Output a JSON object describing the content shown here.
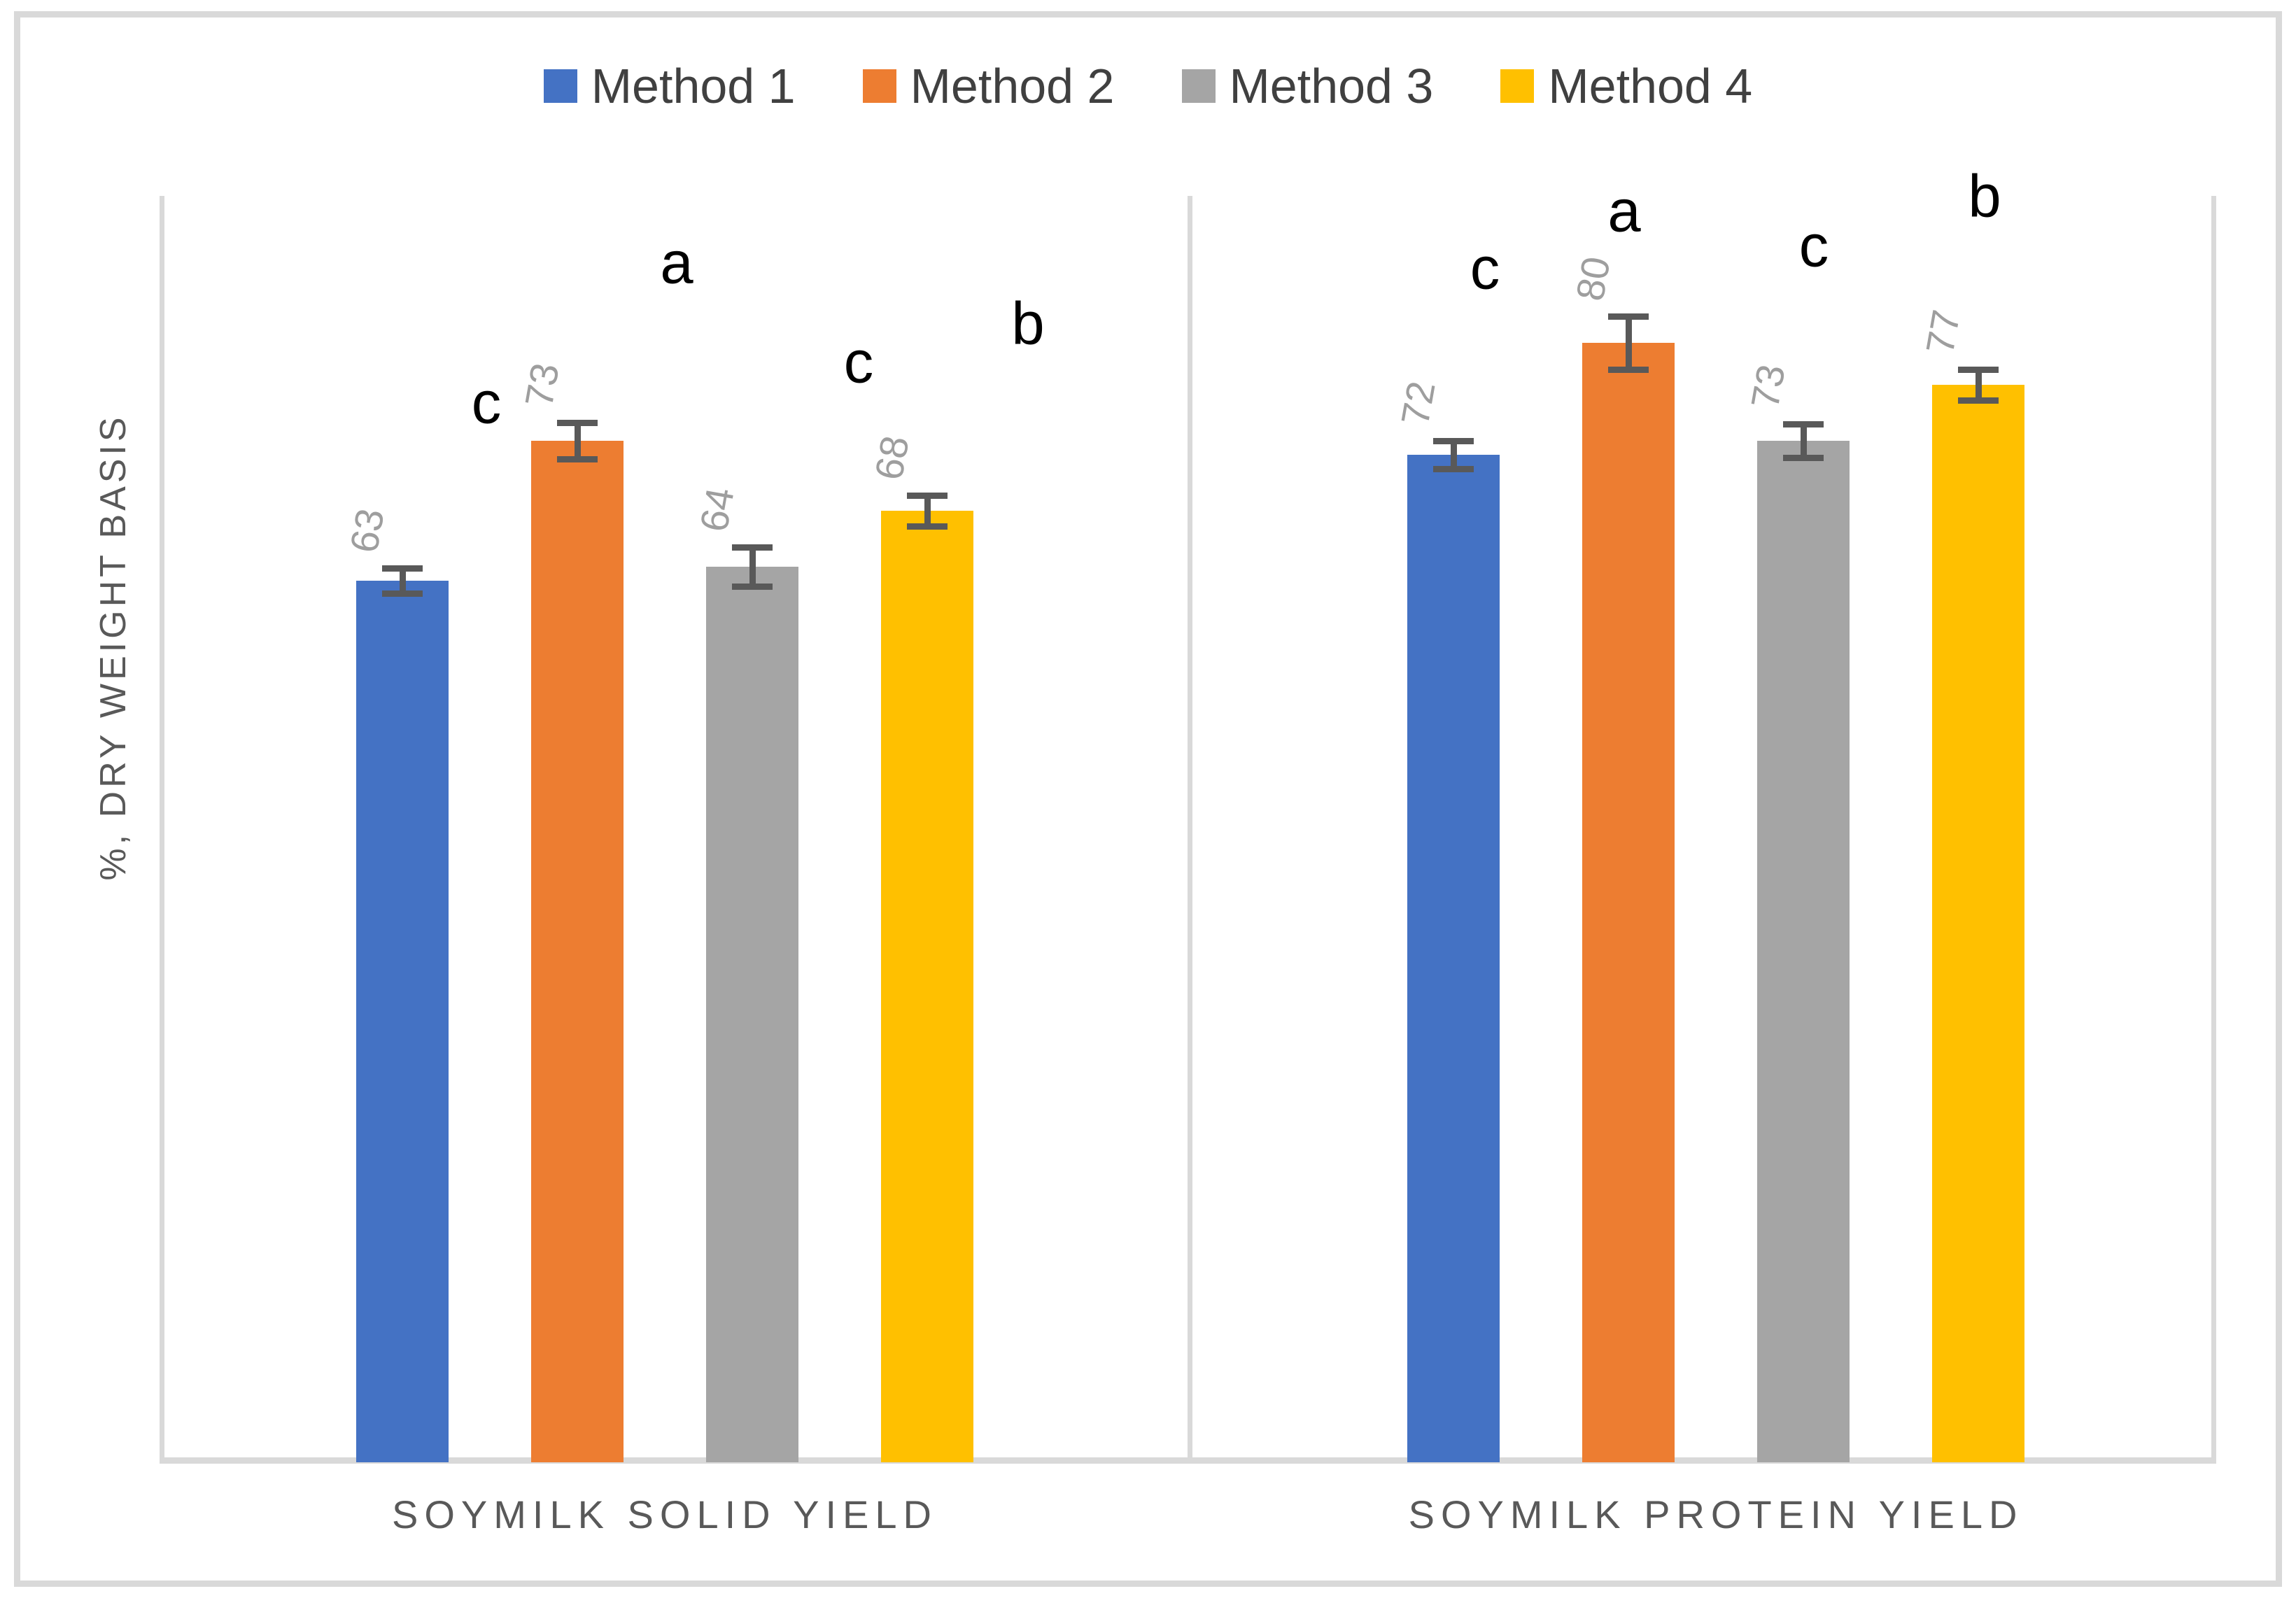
{
  "chart_data": {
    "type": "bar",
    "title": "",
    "xlabel": "",
    "ylabel": "%, DRY WEIGHT BASIS",
    "ylim": [
      0,
      90
    ],
    "grid": false,
    "legend_position": "top",
    "data_label_rotation": "up",
    "categories": [
      "SOYMILK SOLID YIELD",
      "SOYMILK PROTEIN YIELD"
    ],
    "series": [
      {
        "name": "Method 1",
        "color": "#4472C4",
        "values": [
          63,
          72
        ],
        "errors": [
          0.9,
          1.0
        ],
        "sig_letters": [
          "c",
          "c"
        ]
      },
      {
        "name": "Method 2",
        "color": "#ED7D31",
        "values": [
          73,
          80
        ],
        "errors": [
          1.3,
          1.9
        ],
        "sig_letters": [
          "a",
          "a"
        ]
      },
      {
        "name": "Method 3",
        "color": "#A5A5A5",
        "values": [
          64,
          73
        ],
        "errors": [
          1.4,
          1.2
        ],
        "sig_letters": [
          "c",
          "c"
        ]
      },
      {
        "name": "Method 4",
        "color": "#FFC000",
        "values": [
          68,
          77
        ],
        "errors": [
          1.1,
          1.1
        ],
        "sig_letters": [
          "b",
          "b"
        ]
      }
    ],
    "sig_letter_offsets": [
      [
        {
          "dx": 120,
          "y": 603
        },
        {
          "dx": 142,
          "y": 403
        },
        {
          "dx": 152,
          "y": 545
        },
        {
          "dx": 144,
          "y": 490
        }
      ],
      [
        {
          "dx": 45,
          "y": 411
        },
        {
          "dx": -6,
          "y": 329
        },
        {
          "dx": 15,
          "y": 379
        },
        {
          "dx": 9,
          "y": 308
        }
      ]
    ]
  },
  "colors": {
    "axis_line": "#d9d9d9",
    "error_bar": "#595959",
    "data_label": "#9e9e9e",
    "category_label": "#595959",
    "axis_title": "#595959",
    "legend_text": "#404040",
    "sig_letter": "#000000",
    "background": "#ffffff",
    "frame_border": "#d9d9d9"
  }
}
